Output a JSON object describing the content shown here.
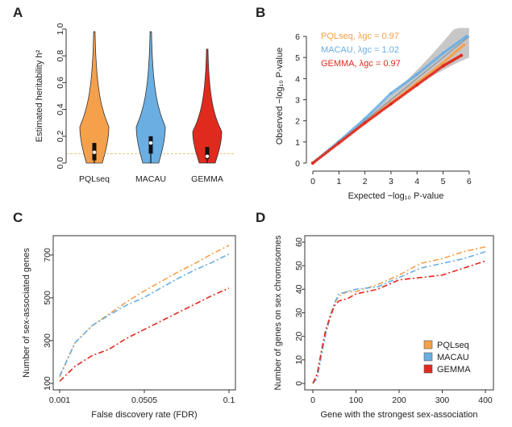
{
  "chart_data": [
    {
      "panel": "A",
      "type": "violin",
      "ylabel": "Estimated heritability h²",
      "ylim": [
        0,
        1
      ],
      "yticks": [
        "0.0",
        "0.2",
        "0.4",
        "0.6",
        "0.8",
        "1.0"
      ],
      "reference_line": 0.07,
      "colors": {
        "PQLseq": "#f5a04b",
        "MACAU": "#6aaee2",
        "GEMMA": "#e02a1e"
      },
      "groups": [
        {
          "name": "PQLseq",
          "min": 0,
          "max": 0.98,
          "q1": 0.02,
          "median": 0.08,
          "q3": 0.15
        },
        {
          "name": "MACAU",
          "min": 0,
          "max": 0.98,
          "q1": 0.07,
          "median": 0.15,
          "q3": 0.2
        },
        {
          "name": "GEMMA",
          "min": 0,
          "max": 0.85,
          "q1": 0.03,
          "median": 0.05,
          "q3": 0.12
        }
      ]
    },
    {
      "panel": "B",
      "type": "scatter",
      "xlabel": "Expected −log₁₀ P-value",
      "ylabel": "Observed −log₁₀ P-value",
      "xlim": [
        0,
        6.5
      ],
      "ylim": [
        0,
        6.5
      ],
      "xticks": [
        "0",
        "1",
        "2",
        "3",
        "4",
        "5",
        "6"
      ],
      "yticks": [
        "0",
        "1",
        "2",
        "3",
        "4",
        "5",
        "6"
      ],
      "legend": [
        {
          "text": "PQLseq, λgc = 0.97",
          "color": "#f5a04b"
        },
        {
          "text": "MACAU, λgc = 1.02",
          "color": "#6aaee2"
        },
        {
          "text": "GEMMA, λgc = 0.97",
          "color": "#e02a1e"
        }
      ],
      "series": [
        {
          "name": "PQLseq",
          "x": [
            0,
            1,
            2,
            3,
            4,
            5,
            5.8
          ],
          "y": [
            0,
            0.95,
            1.9,
            2.85,
            3.8,
            4.75,
            5.6
          ]
        },
        {
          "name": "MACAU",
          "x": [
            0,
            1,
            2,
            3,
            4,
            5,
            5.9
          ],
          "y": [
            0,
            1.02,
            2.1,
            3.3,
            4.2,
            5.2,
            6.0
          ]
        },
        {
          "name": "GEMMA",
          "x": [
            0,
            1,
            2,
            3,
            4,
            5,
            5.7
          ],
          "y": [
            0,
            0.95,
            1.9,
            2.8,
            3.7,
            4.6,
            5.1
          ]
        }
      ]
    },
    {
      "panel": "C",
      "type": "line",
      "xlabel": "False discovery rate (FDR)",
      "ylabel": "Number of sex-associated genes",
      "xlim": [
        0.001,
        0.1
      ],
      "ylim": [
        100,
        760
      ],
      "xticks": [
        "0.001",
        "0.0505",
        "0.1"
      ],
      "yticks": [
        "100",
        "300",
        "500",
        "700"
      ],
      "series": [
        {
          "name": "PQLseq",
          "x": [
            0.001,
            0.01,
            0.02,
            0.03,
            0.04,
            0.05,
            0.06,
            0.07,
            0.08,
            0.09,
            0.1
          ],
          "y": [
            130,
            290,
            370,
            425,
            480,
            530,
            575,
            620,
            660,
            705,
            745
          ]
        },
        {
          "name": "MACAU",
          "x": [
            0.001,
            0.01,
            0.02,
            0.03,
            0.04,
            0.05,
            0.06,
            0.07,
            0.08,
            0.09,
            0.1
          ],
          "y": [
            135,
            290,
            370,
            420,
            465,
            500,
            545,
            590,
            630,
            665,
            705
          ]
        },
        {
          "name": "GEMMA",
          "x": [
            0.001,
            0.01,
            0.02,
            0.03,
            0.04,
            0.05,
            0.06,
            0.07,
            0.08,
            0.09,
            0.1
          ],
          "y": [
            110,
            180,
            230,
            260,
            310,
            350,
            390,
            430,
            470,
            510,
            545
          ]
        }
      ]
    },
    {
      "panel": "D",
      "type": "line",
      "xlabel": "Gene with the strongest sex-association",
      "ylabel": "Number of genes on sex chromosomes",
      "xlim": [
        0,
        400
      ],
      "ylim": [
        0,
        60
      ],
      "xticks": [
        "0",
        "100",
        "200",
        "300",
        "400"
      ],
      "yticks": [
        "0",
        "10",
        "20",
        "30",
        "40",
        "50",
        "60"
      ],
      "legend": [
        {
          "text": "PQLseq",
          "color": "#f5a04b"
        },
        {
          "text": "MACAU",
          "color": "#6aaee2"
        },
        {
          "text": "GEMMA",
          "color": "#e02a1e"
        }
      ],
      "series": [
        {
          "name": "PQLseq",
          "x": [
            0,
            10,
            20,
            30,
            40,
            50,
            60,
            80,
            100,
            150,
            200,
            250,
            300,
            350,
            400
          ],
          "y": [
            0,
            3,
            13,
            22,
            29,
            34,
            37,
            39,
            39,
            42,
            46,
            51,
            53,
            56,
            58
          ]
        },
        {
          "name": "MACAU",
          "x": [
            0,
            10,
            20,
            30,
            40,
            50,
            60,
            80,
            100,
            150,
            200,
            250,
            300,
            350,
            400
          ],
          "y": [
            0,
            2,
            12,
            21,
            28,
            34,
            38,
            39,
            40,
            41,
            45,
            49,
            51,
            53,
            56
          ]
        },
        {
          "name": "GEMMA",
          "x": [
            0,
            10,
            20,
            30,
            40,
            50,
            60,
            80,
            100,
            150,
            200,
            250,
            300,
            350,
            400
          ],
          "y": [
            0,
            4,
            14,
            23,
            28,
            33,
            35,
            36,
            38,
            40,
            44,
            45,
            46,
            49,
            52
          ]
        }
      ]
    }
  ]
}
